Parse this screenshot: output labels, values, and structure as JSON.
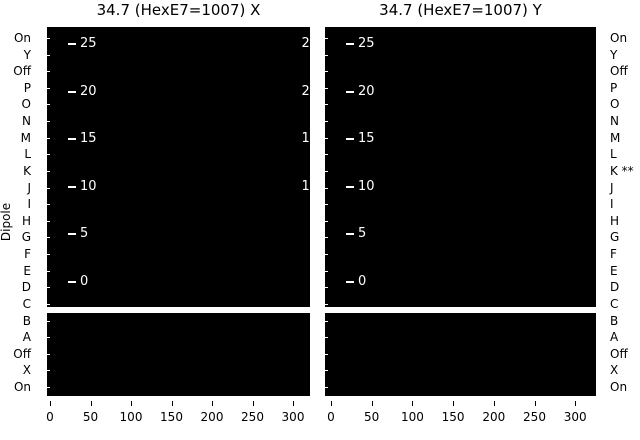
{
  "figure": {
    "colors": {
      "background": "#ffffff",
      "panel": "#000000",
      "inner_text": "#ffffff",
      "outer_text": "#000000"
    }
  },
  "titles": {
    "left": "34.7 (HexE7=1007) X",
    "right": "34.7 (HexE7=1007) Y"
  },
  "y_axis_label": "Dipole",
  "row_labels_left": [
    "On",
    "Y",
    "Off",
    "P",
    "O",
    "N",
    "M",
    "L",
    "K",
    "J",
    "I",
    "H",
    "G",
    "F",
    "E",
    "D",
    "C",
    "B",
    "A",
    "Off",
    "X",
    "On"
  ],
  "row_labels_right": [
    "On",
    "Y",
    "Off",
    "P",
    "O",
    "N",
    "M",
    "L",
    "K **",
    "J",
    "I",
    "H",
    "G",
    "F",
    "E",
    "D",
    "C",
    "B",
    "A",
    "Off",
    "X",
    "On"
  ],
  "inner_tick_labels": [
    "25",
    "20",
    "15",
    "10",
    "5",
    "0"
  ],
  "x_tick_labels": [
    "0",
    "50",
    "100",
    "150",
    "200",
    "250",
    "300"
  ],
  "chart_data": [
    {
      "type": "heatmap",
      "title": "34.7 (HexE7=1007) X",
      "ylabel": "Dipole",
      "row_categories": [
        "On",
        "Y",
        "Off",
        "P",
        "O",
        "N",
        "M",
        "L",
        "K",
        "J",
        "I",
        "H",
        "G",
        "F",
        "E",
        "D",
        "C",
        "B",
        "A",
        "Off",
        "X",
        "On"
      ],
      "inner_axis_ticks": [
        25,
        20,
        15,
        10,
        5,
        0
      ],
      "x_ticks": [
        0,
        50,
        100,
        150,
        200,
        250,
        300
      ],
      "xlim": [
        0,
        320
      ],
      "grid": false,
      "legend": false,
      "values": "uniform black panel - no visible signal/data points",
      "split_band_between_rows": [
        "C",
        "B"
      ]
    },
    {
      "type": "heatmap",
      "title": "34.7 (HexE7=1007) Y",
      "ylabel": "",
      "row_categories": [
        "On",
        "Y",
        "Off",
        "P",
        "O",
        "N",
        "M",
        "L",
        "K **",
        "J",
        "I",
        "H",
        "G",
        "F",
        "E",
        "D",
        "C",
        "B",
        "A",
        "Off",
        "X",
        "On"
      ],
      "inner_axis_ticks": [
        25,
        20,
        15,
        10,
        5,
        0
      ],
      "x_ticks": [
        0,
        50,
        100,
        150,
        200,
        250,
        300
      ],
      "xlim": [
        0,
        320
      ],
      "grid": false,
      "legend": false,
      "values": "uniform black panel - no visible signal/data points",
      "split_band_between_rows": [
        "C",
        "B"
      ]
    }
  ]
}
